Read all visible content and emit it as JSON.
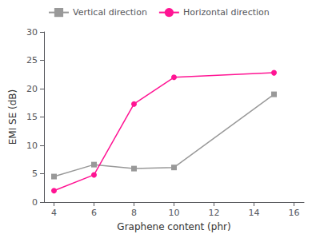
{
  "chart_data": {
    "type": "line",
    "xlabel": "Graphene content (phr)",
    "ylabel": "EMI SE (dB)",
    "x": [
      4,
      6,
      8,
      10,
      15
    ],
    "series": [
      {
        "name": "Vertical direction",
        "color": "#999999",
        "marker": "square",
        "values": [
          4.5,
          6.6,
          5.9,
          6.1,
          19.0
        ]
      },
      {
        "name": "Horizontal direction",
        "color": "#FF1493",
        "marker": "circle",
        "values": [
          2.0,
          4.8,
          17.3,
          22.0,
          22.8
        ]
      }
    ],
    "xlim": [
      3.5,
      16.5
    ],
    "xticks": [
      4,
      6,
      8,
      10,
      12,
      14,
      16
    ],
    "ylim": [
      0,
      30
    ],
    "yticks": [
      0,
      5,
      10,
      15,
      20,
      25,
      30
    ],
    "grid": false,
    "legend": "upper left"
  }
}
